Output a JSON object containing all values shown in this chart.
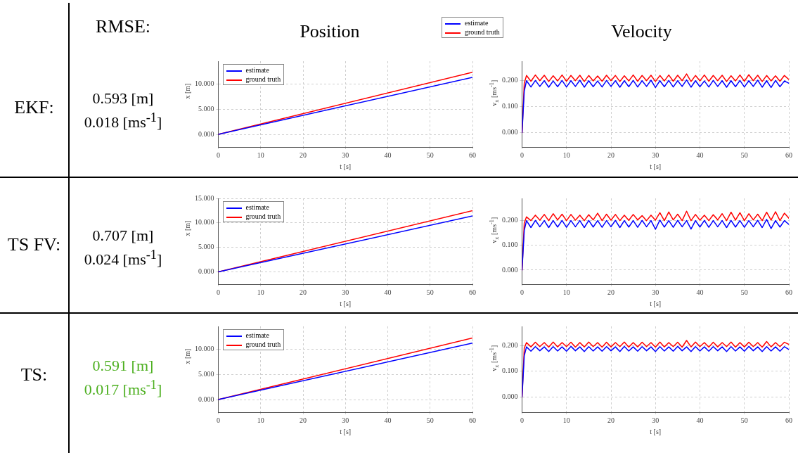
{
  "chart_data": [
    {
      "type": "other",
      "title": "RMSE:"
    },
    {
      "type": "other",
      "title": "EKF:",
      "annotations": [
        "0.593 [m]",
        "0.018 [ms$^{-1}$]"
      ]
    },
    {
      "type": "line",
      "title": "Position",
      "xlabel": "t [s]",
      "ylabel": "x [m]",
      "legend": "top left",
      "grid": true,
      "x": [
        0,
        60
      ],
      "xlim": [
        0,
        60
      ],
      "xticks": [
        0,
        10,
        20,
        30,
        40,
        50,
        60
      ],
      "ylim": [
        -2.5,
        14.5
      ],
      "yticks": [
        {
          "value": 0,
          "label": "0.000"
        },
        {
          "value": 5,
          "label": "5.000"
        },
        {
          "value": 10,
          "label": "10.000"
        }
      ],
      "series": [
        {
          "name": "estimate",
          "color": "#0000ff",
          "values": [
            0,
            11.3
          ]
        },
        {
          "name": "ground truth",
          "color": "#ff0000",
          "values": [
            0,
            12.3
          ]
        }
      ]
    },
    {
      "type": "line",
      "title": "Velocity",
      "xlabel": "t [s]",
      "ylabel": "v$_{x}$ [ms$^{-1}$]",
      "legend": "top",
      "grid": true,
      "x": [
        0,
        0.5,
        1,
        2,
        3,
        4,
        5,
        6,
        7,
        8,
        9,
        10,
        11,
        12,
        13,
        14,
        15,
        16,
        17,
        18,
        19,
        20,
        21,
        22,
        23,
        24,
        25,
        26,
        27,
        28,
        29,
        30,
        31,
        32,
        33,
        34,
        35,
        36,
        37,
        38,
        39,
        40,
        41,
        42,
        43,
        44,
        45,
        46,
        47,
        48,
        49,
        50,
        51,
        52,
        53,
        54,
        55,
        56,
        57,
        58,
        59,
        60
      ],
      "xlim": [
        0,
        60
      ],
      "xticks": [
        0,
        10,
        20,
        30,
        40,
        50,
        60
      ],
      "ylim": [
        -0.055,
        0.275
      ],
      "yticks": [
        {
          "value": 0,
          "label": "0.000"
        },
        {
          "value": 0.1,
          "label": "0.100"
        },
        {
          "value": 0.2,
          "label": "0.200"
        }
      ],
      "series": [
        {
          "name": "estimate",
          "color": "#0000ff",
          "values": [
            0,
            0.16,
            0.2,
            0.176,
            0.201,
            0.178,
            0.2,
            0.175,
            0.199,
            0.177,
            0.201,
            0.176,
            0.2,
            0.178,
            0.202,
            0.175,
            0.2,
            0.177,
            0.199,
            0.176,
            0.201,
            0.178,
            0.2,
            0.175,
            0.2,
            0.177,
            0.201,
            0.176,
            0.2,
            0.178,
            0.202,
            0.174,
            0.2,
            0.177,
            0.201,
            0.176,
            0.2,
            0.178,
            0.203,
            0.175,
            0.2,
            0.177,
            0.199,
            0.176,
            0.201,
            0.178,
            0.2,
            0.175,
            0.2,
            0.177,
            0.201,
            0.176,
            0.2,
            0.178,
            0.202,
            0.175,
            0.2,
            0.174,
            0.201,
            0.177,
            0.199,
            0.19
          ]
        },
        {
          "name": "ground truth",
          "color": "#ff0000",
          "values": [
            0,
            0.19,
            0.22,
            0.198,
            0.222,
            0.2,
            0.221,
            0.197,
            0.219,
            0.199,
            0.222,
            0.198,
            0.22,
            0.2,
            0.221,
            0.197,
            0.22,
            0.199,
            0.218,
            0.198,
            0.221,
            0.2,
            0.22,
            0.197,
            0.219,
            0.199,
            0.222,
            0.198,
            0.22,
            0.2,
            0.221,
            0.197,
            0.22,
            0.199,
            0.222,
            0.198,
            0.221,
            0.2,
            0.226,
            0.197,
            0.22,
            0.199,
            0.222,
            0.198,
            0.22,
            0.2,
            0.221,
            0.197,
            0.219,
            0.199,
            0.222,
            0.198,
            0.223,
            0.2,
            0.221,
            0.197,
            0.22,
            0.199,
            0.219,
            0.198,
            0.22,
            0.205
          ]
        }
      ]
    },
    {
      "type": "other",
      "title": "TS FV:",
      "annotations": [
        "0.707 [m]",
        "0.024 [ms$^{-1}$]"
      ]
    },
    {
      "type": "line",
      "xlabel": "t [s]",
      "ylabel": "x [m]",
      "legend": "top left",
      "grid": true,
      "x": [
        0,
        60
      ],
      "xlim": [
        0,
        60
      ],
      "xticks": [
        0,
        10,
        20,
        30,
        40,
        50,
        60
      ],
      "ylim": [
        -2.5,
        15
      ],
      "yticks": [
        {
          "value": 0,
          "label": "0.000"
        },
        {
          "value": 5,
          "label": "5.000"
        },
        {
          "value": 10,
          "label": "10.000"
        },
        {
          "value": 15,
          "label": "15.000"
        }
      ],
      "series": [
        {
          "name": "estimate",
          "color": "#0000ff",
          "values": [
            0,
            11.4
          ]
        },
        {
          "name": "ground truth",
          "color": "#ff0000",
          "values": [
            0,
            12.5
          ]
        }
      ]
    },
    {
      "type": "line",
      "xlabel": "t [s]",
      "ylabel": "v$_{x}$ [ms$^{-1}$]",
      "grid": true,
      "x": [
        0,
        0.5,
        1,
        2,
        3,
        4,
        5,
        6,
        7,
        8,
        9,
        10,
        11,
        12,
        13,
        14,
        15,
        16,
        17,
        18,
        19,
        20,
        21,
        22,
        23,
        24,
        25,
        26,
        27,
        28,
        29,
        30,
        31,
        32,
        33,
        34,
        35,
        36,
        37,
        38,
        39,
        40,
        41,
        42,
        43,
        44,
        45,
        46,
        47,
        48,
        49,
        50,
        51,
        52,
        53,
        54,
        55,
        56,
        57,
        58,
        59,
        60
      ],
      "xlim": [
        0,
        60
      ],
      "xticks": [
        0,
        10,
        20,
        30,
        40,
        50,
        60
      ],
      "ylim": [
        -0.057,
        0.29
      ],
      "yticks": [
        {
          "value": 0,
          "label": "0.000"
        },
        {
          "value": 0.1,
          "label": "0.100"
        },
        {
          "value": 0.2,
          "label": "0.200"
        }
      ],
      "series": [
        {
          "color": "#0000ff",
          "values": [
            0,
            0.16,
            0.2,
            0.172,
            0.201,
            0.175,
            0.2,
            0.172,
            0.2,
            0.174,
            0.201,
            0.173,
            0.2,
            0.175,
            0.2,
            0.172,
            0.201,
            0.174,
            0.2,
            0.173,
            0.2,
            0.175,
            0.201,
            0.172,
            0.2,
            0.174,
            0.2,
            0.173,
            0.201,
            0.175,
            0.2,
            0.165,
            0.202,
            0.174,
            0.2,
            0.173,
            0.201,
            0.175,
            0.2,
            0.166,
            0.2,
            0.174,
            0.201,
            0.173,
            0.2,
            0.175,
            0.2,
            0.172,
            0.201,
            0.174,
            0.2,
            0.173,
            0.2,
            0.175,
            0.201,
            0.172,
            0.205,
            0.168,
            0.2,
            0.174,
            0.2,
            0.185
          ]
        },
        {
          "color": "#ff0000",
          "values": [
            0,
            0.19,
            0.215,
            0.2,
            0.222,
            0.202,
            0.225,
            0.2,
            0.228,
            0.203,
            0.226,
            0.2,
            0.225,
            0.202,
            0.222,
            0.2,
            0.224,
            0.203,
            0.23,
            0.2,
            0.226,
            0.202,
            0.225,
            0.2,
            0.222,
            0.201,
            0.225,
            0.203,
            0.22,
            0.2,
            0.222,
            0.202,
            0.232,
            0.2,
            0.235,
            0.203,
            0.226,
            0.2,
            0.238,
            0.2,
            0.225,
            0.202,
            0.222,
            0.2,
            0.224,
            0.203,
            0.228,
            0.2,
            0.234,
            0.202,
            0.232,
            0.2,
            0.228,
            0.203,
            0.226,
            0.2,
            0.234,
            0.202,
            0.236,
            0.2,
            0.23,
            0.21
          ]
        }
      ]
    },
    {
      "type": "other",
      "title": "TS:",
      "color": "#4caf1f",
      "annotations": [
        "0.591 [m]",
        "0.017 [ms$^{-1}$]"
      ]
    },
    {
      "type": "line",
      "xlabel": "t [s]",
      "ylabel": "x [m]",
      "legend": "top left",
      "grid": true,
      "x": [
        0,
        60
      ],
      "xlim": [
        0,
        60
      ],
      "xticks": [
        0,
        10,
        20,
        30,
        40,
        50,
        60
      ],
      "ylim": [
        -2.5,
        14.5
      ],
      "yticks": [
        {
          "value": 0,
          "label": "0.000"
        },
        {
          "value": 5,
          "label": "5.000"
        },
        {
          "value": 10,
          "label": "10.000"
        }
      ],
      "series": [
        {
          "name": "estimate",
          "color": "#0000ff",
          "values": [
            0,
            11.2
          ]
        },
        {
          "name": "ground truth",
          "color": "#ff0000",
          "values": [
            0,
            12.2
          ]
        }
      ]
    },
    {
      "type": "line",
      "xlabel": "t [s]",
      "ylabel": "v$_{x}$ [ms$^{-1}$]",
      "grid": true,
      "x": [
        0,
        0.5,
        1,
        2,
        3,
        4,
        5,
        6,
        7,
        8,
        9,
        10,
        11,
        12,
        13,
        14,
        15,
        16,
        17,
        18,
        19,
        20,
        21,
        22,
        23,
        24,
        25,
        26,
        27,
        28,
        29,
        30,
        31,
        32,
        33,
        34,
        35,
        36,
        37,
        38,
        39,
        40,
        41,
        42,
        43,
        44,
        45,
        46,
        47,
        48,
        49,
        50,
        51,
        52,
        53,
        54,
        55,
        56,
        57,
        58,
        59,
        60
      ],
      "xlim": [
        0,
        60
      ],
      "xticks": [
        0,
        10,
        20,
        30,
        40,
        50,
        60
      ],
      "ylim": [
        -0.06,
        0.275
      ],
      "yticks": [
        {
          "value": 0,
          "label": "0.000"
        },
        {
          "value": 0.1,
          "label": "0.100"
        },
        {
          "value": 0.2,
          "label": "0.200"
        }
      ],
      "series": [
        {
          "color": "#0000ff",
          "values": [
            0,
            0.16,
            0.195,
            0.178,
            0.196,
            0.18,
            0.195,
            0.177,
            0.196,
            0.179,
            0.195,
            0.178,
            0.197,
            0.18,
            0.195,
            0.177,
            0.196,
            0.179,
            0.195,
            0.178,
            0.196,
            0.18,
            0.195,
            0.177,
            0.197,
            0.179,
            0.195,
            0.178,
            0.196,
            0.18,
            0.195,
            0.177,
            0.196,
            0.179,
            0.195,
            0.178,
            0.197,
            0.18,
            0.195,
            0.177,
            0.196,
            0.179,
            0.195,
            0.178,
            0.196,
            0.18,
            0.195,
            0.177,
            0.196,
            0.179,
            0.195,
            0.178,
            0.197,
            0.18,
            0.195,
            0.177,
            0.196,
            0.179,
            0.195,
            0.178,
            0.196,
            0.185
          ]
        },
        {
          "color": "#ff0000",
          "values": [
            0,
            0.19,
            0.212,
            0.195,
            0.213,
            0.196,
            0.212,
            0.194,
            0.214,
            0.195,
            0.212,
            0.196,
            0.213,
            0.194,
            0.212,
            0.195,
            0.214,
            0.196,
            0.212,
            0.194,
            0.213,
            0.195,
            0.212,
            0.196,
            0.214,
            0.194,
            0.212,
            0.195,
            0.213,
            0.196,
            0.212,
            0.194,
            0.214,
            0.195,
            0.212,
            0.196,
            0.213,
            0.194,
            0.22,
            0.195,
            0.214,
            0.196,
            0.212,
            0.194,
            0.213,
            0.195,
            0.212,
            0.196,
            0.214,
            0.194,
            0.212,
            0.195,
            0.213,
            0.196,
            0.212,
            0.194,
            0.216,
            0.195,
            0.212,
            0.196,
            0.213,
            0.205
          ]
        }
      ]
    }
  ]
}
